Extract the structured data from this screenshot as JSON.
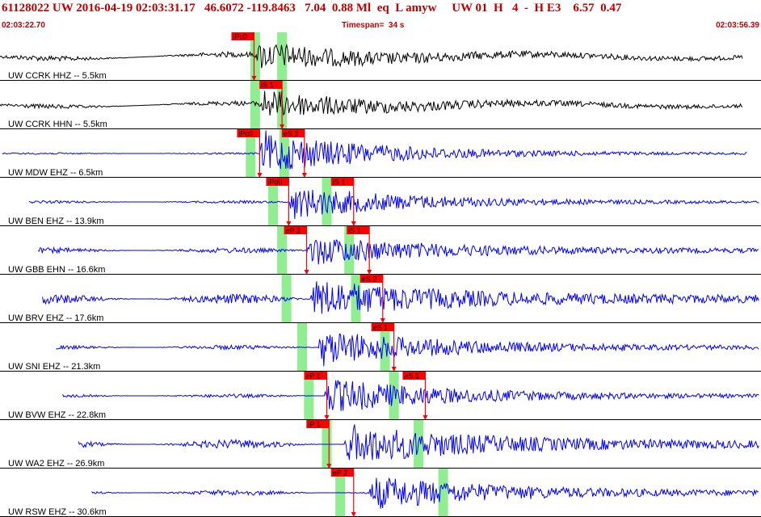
{
  "header": {
    "title": "61128022 UW 2016-04-19 02:03:31.17   46.6072 -119.8463   7.04  0.88 Ml  eq  L amyw     UW 01  H   4  -  H E3    6.57  0.47",
    "start_time": "02:03:22.70",
    "timespan": "Timespan=  34 s",
    "end_time": "02:03:56.39"
  },
  "colors": {
    "trace_black": "#000000",
    "trace_blue": "#0000ff",
    "pick_red": "#ff0000",
    "window_green": "#90ee90",
    "separator": "#000000"
  },
  "channels": [
    {
      "label": "UW CCRK HHZ -- 5.5km",
      "color": "black",
      "start": 0.0,
      "end": 33.2,
      "onset": 11.4,
      "amp_noise": 0.12,
      "amp_event": 0.55,
      "windows": [
        11.4,
        12.6
      ],
      "picks": [
        {
          "text": "iPc0",
          "t": 11.35,
          "pos": "top",
          "kind": "P"
        }
      ]
    },
    {
      "label": "UW CCRK HHN -- 5.5km",
      "color": "black",
      "start": 0.0,
      "end": 33.2,
      "onset": 11.5,
      "amp_noise": 0.1,
      "amp_event": 0.6,
      "windows": [
        11.4,
        12.6
      ],
      "picks": [
        {
          "text": "iS 1",
          "t": 12.6,
          "pos": "top",
          "kind": "S"
        }
      ]
    },
    {
      "label": "UW MDW EHZ -- 6.5km",
      "color": "blue",
      "start": 0.1,
      "end": 33.4,
      "onset": 11.6,
      "amp_noise": 0.04,
      "amp_event": 0.9,
      "windows": [
        11.2,
        12.7
      ],
      "picks": [
        {
          "text": "iPc0",
          "t": 11.6,
          "pos": "top",
          "kind": "P"
        },
        {
          "text": "eS 2",
          "t": 13.6,
          "pos": "top",
          "kind": "S"
        }
      ]
    },
    {
      "label": "UW BEN EHZ -- 13.9km",
      "color": "blue",
      "start": 1.3,
      "end": 34.5,
      "onset": 12.9,
      "amp_noise": 0.06,
      "amp_event": 0.7,
      "windows": [
        12.2,
        14.6
      ],
      "picks": [
        {
          "text": "iPd0",
          "t": 12.9,
          "pos": "top",
          "kind": "P"
        },
        {
          "text": "iS 1",
          "t": 15.8,
          "pos": "top",
          "kind": "S"
        }
      ]
    },
    {
      "label": "UW GBB EHN -- 16.6km",
      "color": "blue",
      "start": 1.7,
      "end": 35.2,
      "onset": 13.7,
      "amp_noise": 0.12,
      "amp_event": 0.6,
      "windows": [
        12.6,
        15.6
      ],
      "picks": [
        {
          "text": "eP 2",
          "t": 13.7,
          "pos": "top",
          "kind": "P"
        },
        {
          "text": "iS 1",
          "t": 16.5,
          "pos": "top",
          "kind": "S"
        }
      ]
    },
    {
      "label": "UW BRV EHZ -- 17.6km",
      "color": "blue",
      "start": 1.9,
      "end": 35.4,
      "onset": 13.9,
      "amp_noise": 0.22,
      "amp_event": 0.75,
      "windows": [
        12.8,
        15.9
      ],
      "picks": [
        {
          "text": "eS 2",
          "t": 17.1,
          "pos": "top",
          "kind": "S"
        }
      ]
    },
    {
      "label": "UW SNI EHZ -- 21.3km",
      "color": "blue",
      "start": 2.5,
      "end": 36.0,
      "onset": 14.2,
      "amp_noise": 0.1,
      "amp_event": 0.75,
      "windows": [
        13.5,
        17.2
      ],
      "picks": [
        {
          "text": "eS 1",
          "t": 17.6,
          "pos": "top",
          "kind": "S"
        }
      ]
    },
    {
      "label": "UW BVW EHZ -- 22.8km",
      "color": "blue",
      "start": 2.8,
      "end": 36.3,
      "onset": 14.5,
      "amp_noise": 0.08,
      "amp_event": 0.75,
      "windows": [
        13.8,
        17.6
      ],
      "picks": [
        {
          "text": "eP 1",
          "t": 14.6,
          "pos": "top",
          "kind": "P"
        },
        {
          "text": "eS 1",
          "t": 19.0,
          "pos": "top",
          "kind": "S"
        }
      ]
    },
    {
      "label": "UW WA2 EHZ -- 26.9km",
      "color": "blue",
      "start": 3.5,
      "end": 36.6,
      "onset": 15.4,
      "amp_noise": 0.2,
      "amp_event": 0.8,
      "windows": [
        14.6,
        18.7
      ],
      "picks": [
        {
          "text": "iP 1",
          "t": 14.7,
          "pos": "top",
          "kind": "P"
        }
      ]
    },
    {
      "label": "UW RSW EHZ -- 30.6km",
      "color": "blue",
      "start": 4.1,
      "end": 37.5,
      "onset": 16.5,
      "amp_noise": 0.12,
      "amp_event": 0.7,
      "windows": [
        15.2,
        19.8
      ],
      "picks": [
        {
          "text": "eP 2",
          "t": 15.8,
          "pos": "top",
          "kind": "P"
        }
      ]
    }
  ]
}
